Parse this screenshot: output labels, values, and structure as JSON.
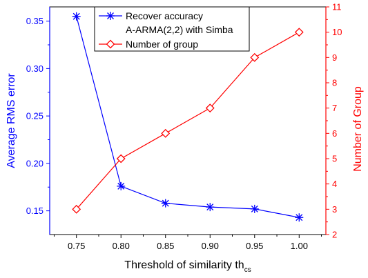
{
  "chart_data": {
    "type": "line",
    "x": [
      0.75,
      0.8,
      0.85,
      0.9,
      0.95,
      1.0
    ],
    "x_tick_labels": [
      "0.75",
      "0.80",
      "0.85",
      "0.90",
      "0.95",
      "1.00"
    ],
    "xlabel": "Threshold of similarity th",
    "xlabel_subscript": "cs",
    "xlim": [
      0.72,
      1.03
    ],
    "ylabel_left": "Average RMS error",
    "ylim_left": [
      0.125,
      0.365
    ],
    "y_left_ticks": [
      0.15,
      0.2,
      0.25,
      0.3,
      0.35
    ],
    "y_left_tick_labels": [
      "0.15",
      "0.20",
      "0.25",
      "0.30",
      "0.35"
    ],
    "ylabel_right": "Number of Group",
    "ylim_right": [
      2,
      11
    ],
    "y_right_ticks": [
      2,
      3,
      4,
      5,
      6,
      7,
      8,
      9,
      10,
      11
    ],
    "y_right_tick_labels": [
      "2",
      "3",
      "4",
      "5",
      "6",
      "7",
      "8",
      "9",
      "10",
      "11"
    ],
    "grid": false,
    "legend_position": "top",
    "series": [
      {
        "name": "Recover accuracy",
        "name_line2": "A-ARMA(2,2) with Simba",
        "axis": "left",
        "marker": "asterisk",
        "color": "#0000ff",
        "values": [
          0.355,
          0.176,
          0.158,
          0.154,
          0.152,
          0.143
        ]
      },
      {
        "name": "Number of group",
        "axis": "right",
        "marker": "diamond",
        "color": "#ff0000",
        "values": [
          3,
          5,
          6,
          7,
          9,
          10
        ]
      }
    ],
    "colors": {
      "left_axis": "#0000ff",
      "right_axis": "#ff0000",
      "frame": "#000000"
    }
  }
}
